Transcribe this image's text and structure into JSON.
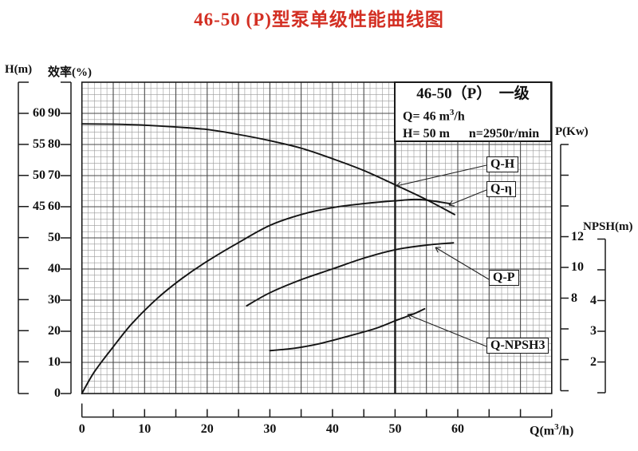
{
  "title": "46-50 (P)型泵单级性能曲线图",
  "axis_labels": {
    "h": "H(m)",
    "eff": "效率(%)",
    "p": "P(Kw)",
    "npsh": "NPSH(m)",
    "q_prefix": "Q(m",
    "q_sup": "3",
    "q_suffix": "/h)"
  },
  "info_box": {
    "line1": "46-50（P）  一级",
    "q_prefix": "Q= 46 m",
    "q_sup": "3",
    "q_suffix": "/h",
    "h_line": "H= 50 m",
    "n_line": "n=2950r/min"
  },
  "colors": {
    "title_red": "#d32f23",
    "ink": "#1a1a1a",
    "grid_minor": "#999999",
    "grid_major": "#4a4a4a"
  },
  "chart_data": {
    "type": "line",
    "title": "46-50 (P)型泵单级性能曲线图",
    "grid": true,
    "x_axis": {
      "label": "Q(m³/h)",
      "labeled_ticks": [
        0,
        10,
        20,
        30,
        40,
        50,
        60
      ],
      "minor_step": 1,
      "major_step": 5,
      "range": [
        0,
        75
      ]
    },
    "y_axes": [
      {
        "id": "H",
        "label": "H(m)",
        "labeled_ticks": [
          60,
          55,
          50,
          45
        ],
        "tick_step": 5,
        "side": "left"
      },
      {
        "id": "eff",
        "label": "效率(%)",
        "labeled_ticks": [
          90,
          80,
          70,
          60,
          50,
          40,
          30,
          20,
          10,
          0
        ],
        "tick_step": 10,
        "side": "left"
      },
      {
        "id": "P",
        "label": "P(Kw)",
        "labeled_ticks": [
          12,
          10,
          8
        ],
        "tick_step": 2,
        "side": "right"
      },
      {
        "id": "NPSH",
        "label": "NPSH(m)",
        "labeled_ticks": [
          4,
          3,
          2
        ],
        "tick_step": 1,
        "side": "right"
      }
    ],
    "series": [
      {
        "name": "Q-H",
        "y_axis": "H",
        "points": [
          [
            0,
            58.3
          ],
          [
            5,
            58.25
          ],
          [
            10,
            58.1
          ],
          [
            15,
            57.8
          ],
          [
            20,
            57.4
          ],
          [
            25,
            56.6
          ],
          [
            30,
            55.6
          ],
          [
            35,
            54.4
          ],
          [
            40,
            52.7
          ],
          [
            45,
            50.8
          ],
          [
            50,
            48.5
          ],
          [
            55,
            46.1
          ],
          [
            59.5,
            43.7
          ]
        ]
      },
      {
        "name": "Q-η",
        "y_axis": "eff",
        "points": [
          [
            0,
            0
          ],
          [
            2,
            7
          ],
          [
            5,
            15
          ],
          [
            8,
            22.5
          ],
          [
            12,
            30.5
          ],
          [
            16,
            37
          ],
          [
            20,
            42.5
          ],
          [
            25,
            48.5
          ],
          [
            30,
            54
          ],
          [
            35,
            57.5
          ],
          [
            40,
            59.7
          ],
          [
            45,
            61
          ],
          [
            50,
            61.9
          ],
          [
            54,
            62.3
          ],
          [
            58.8,
            61
          ]
        ]
      },
      {
        "name": "Q-P",
        "y_axis": "P",
        "points": [
          [
            26.3,
            7.5
          ],
          [
            30,
            8.35
          ],
          [
            35,
            9.2
          ],
          [
            40,
            9.9
          ],
          [
            45,
            10.6
          ],
          [
            50,
            11.15
          ],
          [
            55,
            11.45
          ],
          [
            59.3,
            11.6
          ]
        ]
      },
      {
        "name": "Q-NPSH3",
        "y_axis": "NPSH",
        "points": [
          [
            30,
            2.37
          ],
          [
            34,
            2.45
          ],
          [
            38,
            2.6
          ],
          [
            42.5,
            2.84
          ],
          [
            47,
            3.1
          ],
          [
            50,
            3.34
          ],
          [
            53,
            3.57
          ],
          [
            54.7,
            3.73
          ]
        ]
      }
    ],
    "highlight_vertical_line_at_q": 50,
    "rated_point": {
      "Q": 46,
      "H": 50,
      "n": "2950r/min",
      "stage": "一级"
    }
  },
  "curve_labels": [
    {
      "text": "Q-H",
      "box": [
        610,
        196
      ],
      "leader": [
        610,
        207,
        497,
        233
      ]
    },
    {
      "text": "Q-η",
      "box": [
        610,
        227
      ],
      "leader": [
        610,
        238,
        563,
        257
      ]
    },
    {
      "text": "Q-P",
      "box": [
        613,
        338
      ],
      "leader": [
        613,
        350,
        546,
        310
      ]
    },
    {
      "text": "Q-NPSH3",
      "box": [
        610,
        423
      ],
      "leader": [
        610,
        434,
        511,
        394
      ]
    }
  ]
}
